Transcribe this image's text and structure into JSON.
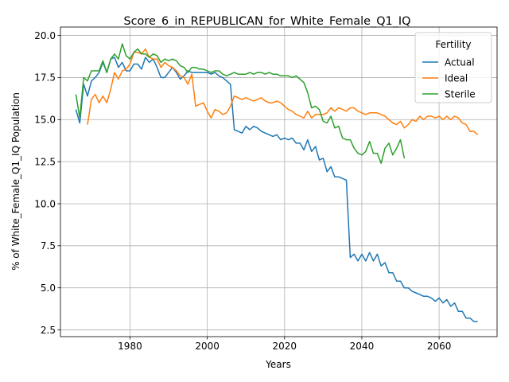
{
  "chart_data": {
    "type": "line",
    "title": "Score_6_in_REPUBLICAN_for_White_Female_Q1_IQ",
    "xlabel": "Years",
    "ylabel": "% of White_Female_Q1_IQ Population",
    "xlim": [
      1962,
      2075
    ],
    "ylim": [
      2.1,
      20.5
    ],
    "xticks": [
      1980,
      2000,
      2020,
      2040,
      2060
    ],
    "yticks": [
      2.5,
      5.0,
      7.5,
      10.0,
      12.5,
      15.0,
      17.5,
      20.0
    ],
    "grid": true,
    "legend": {
      "title": "Fertility",
      "placement": "top-right"
    },
    "series": [
      {
        "name": "Actual",
        "color": "#1f77b4",
        "x": [
          1966,
          1967,
          1968,
          1969,
          1970,
          1971,
          1972,
          1973,
          1974,
          1975,
          1976,
          1977,
          1978,
          1979,
          1980,
          1981,
          1982,
          1983,
          1984,
          1985,
          1986,
          1987,
          1988,
          1989,
          1990,
          1991,
          1992,
          1993,
          1994,
          1995,
          1996,
          1997,
          1998,
          1999,
          2000,
          2001,
          2002,
          2003,
          2004,
          2005,
          2006,
          2007,
          2008,
          2009,
          2010,
          2011,
          2012,
          2013,
          2014,
          2015,
          2016,
          2017,
          2018,
          2019,
          2020,
          2021,
          2022,
          2023,
          2024,
          2025,
          2026,
          2027,
          2028,
          2029,
          2030,
          2031,
          2032,
          2033,
          2034,
          2035,
          2036,
          2037,
          2038,
          2039,
          2040,
          2041,
          2042,
          2043,
          2044,
          2045,
          2046,
          2047,
          2048,
          2049,
          2050,
          2051,
          2052,
          2053,
          2054,
          2055,
          2056,
          2057,
          2058,
          2059,
          2060,
          2061,
          2062,
          2063,
          2064,
          2065,
          2066,
          2067,
          2068,
          2069,
          2070
        ],
        "y": [
          15.6,
          14.8,
          17.1,
          16.4,
          17.3,
          17.5,
          17.8,
          18.4,
          17.8,
          18.6,
          18.7,
          18.1,
          18.4,
          17.9,
          17.9,
          18.3,
          18.3,
          18.0,
          18.7,
          18.4,
          18.6,
          18.1,
          17.5,
          17.5,
          17.8,
          18.1,
          17.8,
          17.4,
          17.6,
          17.9,
          17.8,
          17.8,
          17.8,
          17.8,
          17.8,
          17.7,
          17.8,
          17.6,
          17.5,
          17.3,
          17.1,
          14.4,
          14.3,
          14.2,
          14.6,
          14.4,
          14.6,
          14.5,
          14.3,
          14.2,
          14.1,
          14.0,
          14.1,
          13.8,
          13.9,
          13.8,
          13.9,
          13.6,
          13.6,
          13.2,
          13.8,
          13.1,
          13.4,
          12.6,
          12.7,
          11.9,
          12.2,
          11.6,
          11.6,
          11.5,
          11.4,
          6.8,
          7.0,
          6.6,
          7.0,
          6.6,
          7.1,
          6.6,
          7.0,
          6.3,
          6.5,
          5.9,
          5.9,
          5.4,
          5.4,
          5.0,
          5.0,
          4.8,
          4.7,
          4.6,
          4.5,
          4.5,
          4.4,
          4.2,
          4.4,
          4.1,
          4.3,
          3.9,
          4.1,
          3.6,
          3.6,
          3.2,
          3.2,
          3.0,
          3.0
        ]
      },
      {
        "name": "Ideal",
        "color": "#ff7f0e",
        "x": [
          1969,
          1970,
          1971,
          1972,
          1973,
          1974,
          1975,
          1976,
          1977,
          1978,
          1979,
          1980,
          1981,
          1982,
          1983,
          1984,
          1985,
          1986,
          1987,
          1988,
          1989,
          1990,
          1991,
          1992,
          1993,
          1994,
          1995,
          1996,
          1997,
          1998,
          1999,
          2000,
          2001,
          2002,
          2003,
          2004,
          2005,
          2006,
          2007,
          2008,
          2009,
          2010,
          2011,
          2012,
          2013,
          2014,
          2015,
          2016,
          2017,
          2018,
          2019,
          2020,
          2021,
          2022,
          2023,
          2024,
          2025,
          2026,
          2027,
          2028,
          2029,
          2030,
          2031,
          2032,
          2033,
          2034,
          2035,
          2036,
          2037,
          2038,
          2039,
          2040,
          2041,
          2042,
          2043,
          2044,
          2045,
          2046,
          2047,
          2048,
          2049,
          2050,
          2051,
          2052,
          2053,
          2054,
          2055,
          2056,
          2057,
          2058,
          2059,
          2060,
          2061,
          2062,
          2063,
          2064,
          2065,
          2066,
          2067,
          2068,
          2069,
          2070
        ],
        "y": [
          14.7,
          16.2,
          16.5,
          16.0,
          16.4,
          16.0,
          16.8,
          17.8,
          17.4,
          17.9,
          18.0,
          18.3,
          19.0,
          19.0,
          18.9,
          19.2,
          18.7,
          18.6,
          18.6,
          18.1,
          18.4,
          18.2,
          18.1,
          17.9,
          17.6,
          17.5,
          17.1,
          17.7,
          15.8,
          15.9,
          16.0,
          15.5,
          15.1,
          15.6,
          15.5,
          15.3,
          15.4,
          15.8,
          16.4,
          16.3,
          16.2,
          16.3,
          16.2,
          16.1,
          16.2,
          16.3,
          16.1,
          16.0,
          16.0,
          16.1,
          16.0,
          15.8,
          15.6,
          15.5,
          15.3,
          15.2,
          15.1,
          15.5,
          15.1,
          15.3,
          15.3,
          15.3,
          15.4,
          15.7,
          15.5,
          15.7,
          15.6,
          15.5,
          15.7,
          15.7,
          15.5,
          15.4,
          15.3,
          15.4,
          15.4,
          15.4,
          15.3,
          15.2,
          15.0,
          14.8,
          14.7,
          14.9,
          14.5,
          14.7,
          15.0,
          14.9,
          15.2,
          15.0,
          15.2,
          15.2,
          15.1,
          15.2,
          15.0,
          15.2,
          15.0,
          15.2,
          15.1,
          14.8,
          14.7,
          14.3,
          14.3,
          14.1
        ]
      },
      {
        "name": "Sterile",
        "color": "#2ca02c",
        "x": [
          1966,
          1967,
          1968,
          1969,
          1970,
          1971,
          1972,
          1973,
          1974,
          1975,
          1976,
          1977,
          1978,
          1979,
          1980,
          1981,
          1982,
          1983,
          1984,
          1985,
          1986,
          1987,
          1988,
          1989,
          1990,
          1991,
          1992,
          1993,
          1994,
          1995,
          1996,
          1997,
          1998,
          1999,
          2000,
          2001,
          2002,
          2003,
          2004,
          2005,
          2006,
          2007,
          2008,
          2009,
          2010,
          2011,
          2012,
          2013,
          2014,
          2015,
          2016,
          2017,
          2018,
          2019,
          2020,
          2021,
          2022,
          2023,
          2024,
          2025,
          2026,
          2027,
          2028,
          2029,
          2030,
          2031,
          2032,
          2033,
          2034,
          2035,
          2036,
          2037,
          2038,
          2039,
          2040,
          2041,
          2042,
          2043,
          2044,
          2045,
          2046,
          2047,
          2048,
          2049,
          2050,
          2051
        ],
        "y": [
          16.5,
          15.1,
          17.5,
          17.3,
          17.9,
          17.9,
          17.9,
          18.5,
          17.8,
          18.6,
          18.9,
          18.6,
          19.5,
          18.8,
          18.6,
          19.0,
          19.2,
          18.9,
          18.9,
          18.7,
          18.9,
          18.8,
          18.4,
          18.6,
          18.5,
          18.6,
          18.5,
          18.2,
          18.1,
          17.8,
          18.1,
          18.1,
          18.0,
          18.0,
          17.9,
          17.8,
          17.9,
          17.9,
          17.7,
          17.6,
          17.7,
          17.8,
          17.7,
          17.7,
          17.7,
          17.8,
          17.7,
          17.8,
          17.8,
          17.7,
          17.8,
          17.7,
          17.7,
          17.6,
          17.6,
          17.6,
          17.5,
          17.6,
          17.4,
          17.2,
          16.6,
          15.7,
          15.8,
          15.6,
          14.9,
          14.8,
          15.2,
          14.5,
          14.6,
          13.9,
          13.8,
          13.8,
          13.3,
          13.0,
          12.9,
          13.1,
          13.7,
          13.0,
          13.0,
          12.4,
          13.3,
          13.6,
          12.9,
          13.3,
          13.8,
          12.7
        ]
      }
    ]
  }
}
